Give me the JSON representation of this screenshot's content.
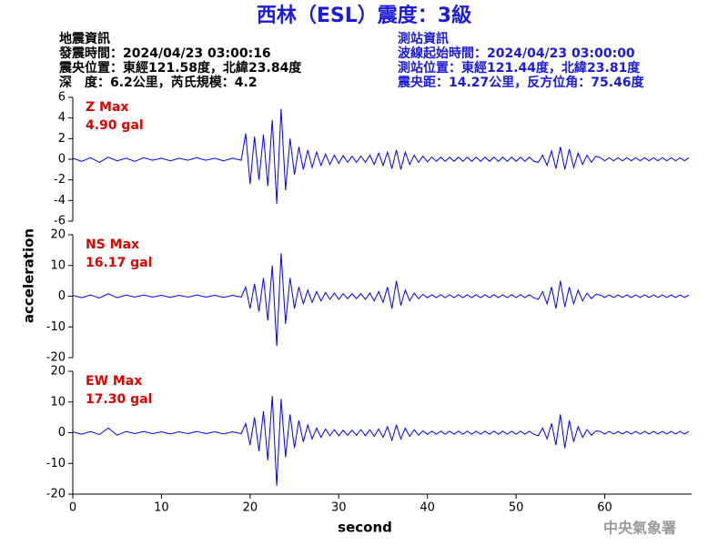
{
  "header": {
    "title": "西林（ESL）震度：3級",
    "event": [
      "地震資訊",
      "發震時間：2024/04/23 03:00:16",
      "震央位置：東經121.58度，北緯23.84度",
      "深　度：6.2公里，芮氏規模：4.2"
    ],
    "station": [
      "測站資訊",
      "波線起始時間：2024/04/23 03:00:00",
      "測站位置：東經121.44度，北緯23.81度",
      "震央距：14.27公里，反方位角：75.46度"
    ],
    "credit": "中央氣象署"
  },
  "chart_data": [
    {
      "type": "line",
      "annotations": [
        "Z Max",
        "4.90 gal"
      ],
      "color": "#0000ff",
      "xlim": [
        0,
        69.8
      ],
      "ylim": [
        -6,
        6
      ],
      "yticks": [
        -6,
        -4,
        -2,
        0,
        2,
        4,
        6
      ],
      "x": [
        0,
        1,
        2,
        3,
        4,
        5,
        6,
        7,
        8,
        9,
        10,
        11,
        12,
        13,
        14,
        15,
        16,
        17,
        18,
        19,
        19.5,
        20,
        20.5,
        21,
        21.5,
        22,
        22.5,
        23,
        23.5,
        24,
        24.5,
        25,
        25.5,
        26,
        26.5,
        27,
        27.5,
        28,
        28.5,
        29,
        29.5,
        30,
        30.5,
        31,
        31.5,
        32,
        32.5,
        33,
        33.5,
        34,
        34.5,
        35,
        35.5,
        36,
        36.5,
        37,
        37.5,
        38,
        38.5,
        39,
        39.5,
        40,
        40.5,
        41,
        41.5,
        42,
        42.5,
        43,
        43.5,
        44,
        44.5,
        45,
        45.5,
        46,
        46.5,
        47,
        47.5,
        48,
        48.5,
        49,
        49.5,
        50,
        50.5,
        51,
        51.5,
        52,
        52.5,
        53,
        53.5,
        54,
        54.5,
        55,
        55.5,
        56,
        56.5,
        57,
        57.5,
        58,
        58.5,
        59,
        59.5,
        60,
        60.5,
        61,
        61.5,
        62,
        62.5,
        63,
        63.5,
        64,
        64.5,
        65,
        65.5,
        66,
        66.5,
        67,
        67.5,
        68,
        68.5,
        69,
        69.5
      ],
      "values": [
        0.1,
        -0.2,
        0.15,
        -0.3,
        0.2,
        -0.15,
        0.1,
        -0.2,
        0.15,
        -0.1,
        0.1,
        -0.15,
        0.1,
        -0.1,
        0.15,
        -0.1,
        0.1,
        -0.15,
        0.1,
        -0.1,
        2.5,
        -2.4,
        2.2,
        -2.0,
        2.4,
        -2.6,
        3.8,
        -4.3,
        4.9,
        -3.0,
        2.0,
        -1.5,
        1.2,
        -1.0,
        0.9,
        -0.8,
        0.7,
        -0.6,
        0.5,
        -0.5,
        0.4,
        -0.4,
        0.35,
        -0.3,
        0.3,
        -0.3,
        0.3,
        -0.3,
        0.4,
        -0.5,
        0.6,
        -0.6,
        0.7,
        -0.9,
        0.9,
        -1.0,
        0.7,
        -0.5,
        0.4,
        -0.3,
        0.3,
        -0.25,
        0.2,
        -0.2,
        0.2,
        -0.2,
        0.2,
        -0.2,
        0.2,
        -0.2,
        0.2,
        -0.2,
        0.2,
        -0.2,
        0.2,
        -0.2,
        0.2,
        -0.2,
        0.2,
        -0.2,
        0.2,
        -0.2,
        0.2,
        -0.2,
        0.2,
        -0.2,
        -0.3,
        0.4,
        -0.6,
        0.8,
        -0.9,
        1.2,
        -1.0,
        1.0,
        -0.8,
        0.6,
        -0.5,
        0.4,
        -0.3,
        0.3,
        0.15,
        -0.15,
        0.15,
        -0.15,
        0.15,
        -0.15,
        0.15,
        -0.15,
        0.15,
        -0.15,
        0.15,
        -0.15,
        0.15,
        -0.15,
        0.15,
        -0.15,
        0.15,
        -0.15,
        0.15,
        -0.15,
        0.15
      ]
    },
    {
      "type": "line",
      "annotations": [
        "NS Max",
        "16.17 gal"
      ],
      "color": "#0000ff",
      "y_label": "acceleration",
      "xlim": [
        0,
        69.8
      ],
      "ylim": [
        -20,
        20
      ],
      "yticks": [
        -20,
        -10,
        0,
        10,
        20
      ],
      "x": [
        0,
        1,
        2,
        3,
        4,
        5,
        6,
        7,
        8,
        9,
        10,
        11,
        12,
        13,
        14,
        15,
        16,
        17,
        18,
        19,
        19.5,
        20,
        20.5,
        21,
        21.5,
        22,
        22.5,
        23,
        23.5,
        24,
        24.5,
        25,
        25.5,
        26,
        26.5,
        27,
        27.5,
        28,
        28.5,
        29,
        29.5,
        30,
        30.5,
        31,
        31.5,
        32,
        32.5,
        33,
        33.5,
        34,
        34.5,
        35,
        35.5,
        36,
        36.5,
        37,
        37.5,
        38,
        38.5,
        39,
        39.5,
        40,
        40.5,
        41,
        41.5,
        42,
        42.5,
        43,
        43.5,
        44,
        44.5,
        45,
        45.5,
        46,
        46.5,
        47,
        47.5,
        48,
        48.5,
        49,
        49.5,
        50,
        50.5,
        51,
        51.5,
        52,
        52.5,
        53,
        53.5,
        54,
        54.5,
        55,
        55.5,
        56,
        56.5,
        57,
        57.5,
        58,
        58.5,
        59,
        59.5,
        60,
        60.5,
        61,
        61.5,
        62,
        62.5,
        63,
        63.5,
        64,
        64.5,
        65,
        65.5,
        66,
        66.5,
        67,
        67.5,
        68,
        68.5,
        69,
        69.5
      ],
      "values": [
        0.3,
        -0.5,
        0.4,
        -0.6,
        0.8,
        -0.5,
        0.4,
        -0.3,
        0.4,
        -0.3,
        0.3,
        -0.4,
        0.3,
        -0.3,
        0.4,
        -0.3,
        0.3,
        -0.4,
        0.3,
        -0.3,
        3,
        -4,
        4,
        -5,
        6,
        -8,
        10,
        -16.17,
        14,
        -9,
        6,
        -4,
        3,
        -2.5,
        2,
        -2,
        1.5,
        -1.5,
        1.2,
        -1,
        1,
        -1,
        0.8,
        -0.8,
        0.8,
        -0.8,
        0.8,
        -1,
        1,
        -1.5,
        1.5,
        -2,
        3,
        -4,
        5,
        -3,
        2,
        -1.5,
        1,
        -0.8,
        0.6,
        -0.5,
        0.5,
        -0.5,
        0.5,
        -0.5,
        0.5,
        -0.5,
        0.5,
        -0.5,
        0.5,
        -0.5,
        0.5,
        -0.5,
        0.5,
        -0.5,
        0.5,
        -0.5,
        0.5,
        -0.5,
        0.5,
        -0.5,
        0.5,
        -0.5,
        0.5,
        -0.5,
        -1,
        1.5,
        -2.5,
        3,
        -4,
        5,
        -3.5,
        3,
        -2.5,
        2,
        -1.5,
        1,
        -0.8,
        0.6,
        0.4,
        -0.4,
        0.4,
        -0.4,
        0.4,
        -0.4,
        0.4,
        -0.4,
        0.4,
        -0.4,
        0.4,
        -0.4,
        0.4,
        -0.4,
        0.4,
        -0.4,
        0.4,
        -0.4,
        0.4,
        -0.4,
        0.4
      ]
    },
    {
      "type": "line",
      "annotations": [
        "EW Max",
        "17.30 gal"
      ],
      "color": "#0000ff",
      "x_label": "second",
      "xlim": [
        0,
        69.8
      ],
      "ylim": [
        -20,
        20
      ],
      "yticks": [
        -20,
        -10,
        0,
        10,
        20
      ],
      "xticks": [
        0,
        10,
        20,
        30,
        40,
        50,
        60
      ],
      "x": [
        0,
        1,
        2,
        3,
        4,
        5,
        6,
        7,
        8,
        9,
        10,
        11,
        12,
        13,
        14,
        15,
        16,
        17,
        18,
        19,
        19.5,
        20,
        20.5,
        21,
        21.5,
        22,
        22.5,
        23,
        23.5,
        24,
        24.5,
        25,
        25.5,
        26,
        26.5,
        27,
        27.5,
        28,
        28.5,
        29,
        29.5,
        30,
        30.5,
        31,
        31.5,
        32,
        32.5,
        33,
        33.5,
        34,
        34.5,
        35,
        35.5,
        36,
        36.5,
        37,
        37.5,
        38,
        38.5,
        39,
        39.5,
        40,
        40.5,
        41,
        41.5,
        42,
        42.5,
        43,
        43.5,
        44,
        44.5,
        45,
        45.5,
        46,
        46.5,
        47,
        47.5,
        48,
        48.5,
        49,
        49.5,
        50,
        50.5,
        51,
        51.5,
        52,
        52.5,
        53,
        53.5,
        54,
        54.5,
        55,
        55.5,
        56,
        56.5,
        57,
        57.5,
        58,
        58.5,
        59,
        59.5,
        60,
        60.5,
        61,
        61.5,
        62,
        62.5,
        63,
        63.5,
        64,
        64.5,
        65,
        65.5,
        66,
        66.5,
        67,
        67.5,
        68,
        68.5,
        69,
        69.5
      ],
      "values": [
        0.3,
        -0.5,
        0.4,
        -0.6,
        1.5,
        -0.8,
        0.4,
        -0.3,
        0.4,
        -0.3,
        0.3,
        -0.4,
        0.3,
        -0.3,
        0.4,
        -0.3,
        0.3,
        -0.4,
        0.3,
        -0.3,
        3,
        -4,
        5,
        -6,
        7,
        -9,
        12,
        -17.3,
        11,
        -8,
        6,
        -5,
        4,
        -3,
        2.5,
        -2,
        1.5,
        -1.5,
        1.2,
        -1,
        1,
        -1,
        0.8,
        -0.8,
        0.8,
        -0.8,
        1,
        -1,
        1,
        -1.2,
        1.2,
        -1.5,
        2,
        -2.5,
        2.5,
        -2,
        1.5,
        -1.2,
        1,
        -0.8,
        0.6,
        -0.5,
        0.5,
        -0.5,
        0.5,
        -0.5,
        0.5,
        -0.5,
        0.5,
        -0.5,
        0.5,
        -0.5,
        0.5,
        -0.5,
        0.5,
        -0.5,
        0.5,
        -0.5,
        0.5,
        -0.5,
        0.5,
        -0.5,
        0.5,
        -0.5,
        0.5,
        -0.5,
        -1,
        1.5,
        -2,
        3,
        -4,
        6,
        -5,
        4,
        -3,
        2,
        -1.5,
        1,
        -0.8,
        0.6,
        0.4,
        -0.4,
        0.4,
        -0.4,
        0.4,
        -0.4,
        0.4,
        -0.4,
        0.4,
        -0.4,
        0.4,
        -0.4,
        0.4,
        -0.4,
        0.4,
        -0.4,
        0.4,
        -0.4,
        0.4,
        -0.4,
        0.4
      ]
    }
  ]
}
